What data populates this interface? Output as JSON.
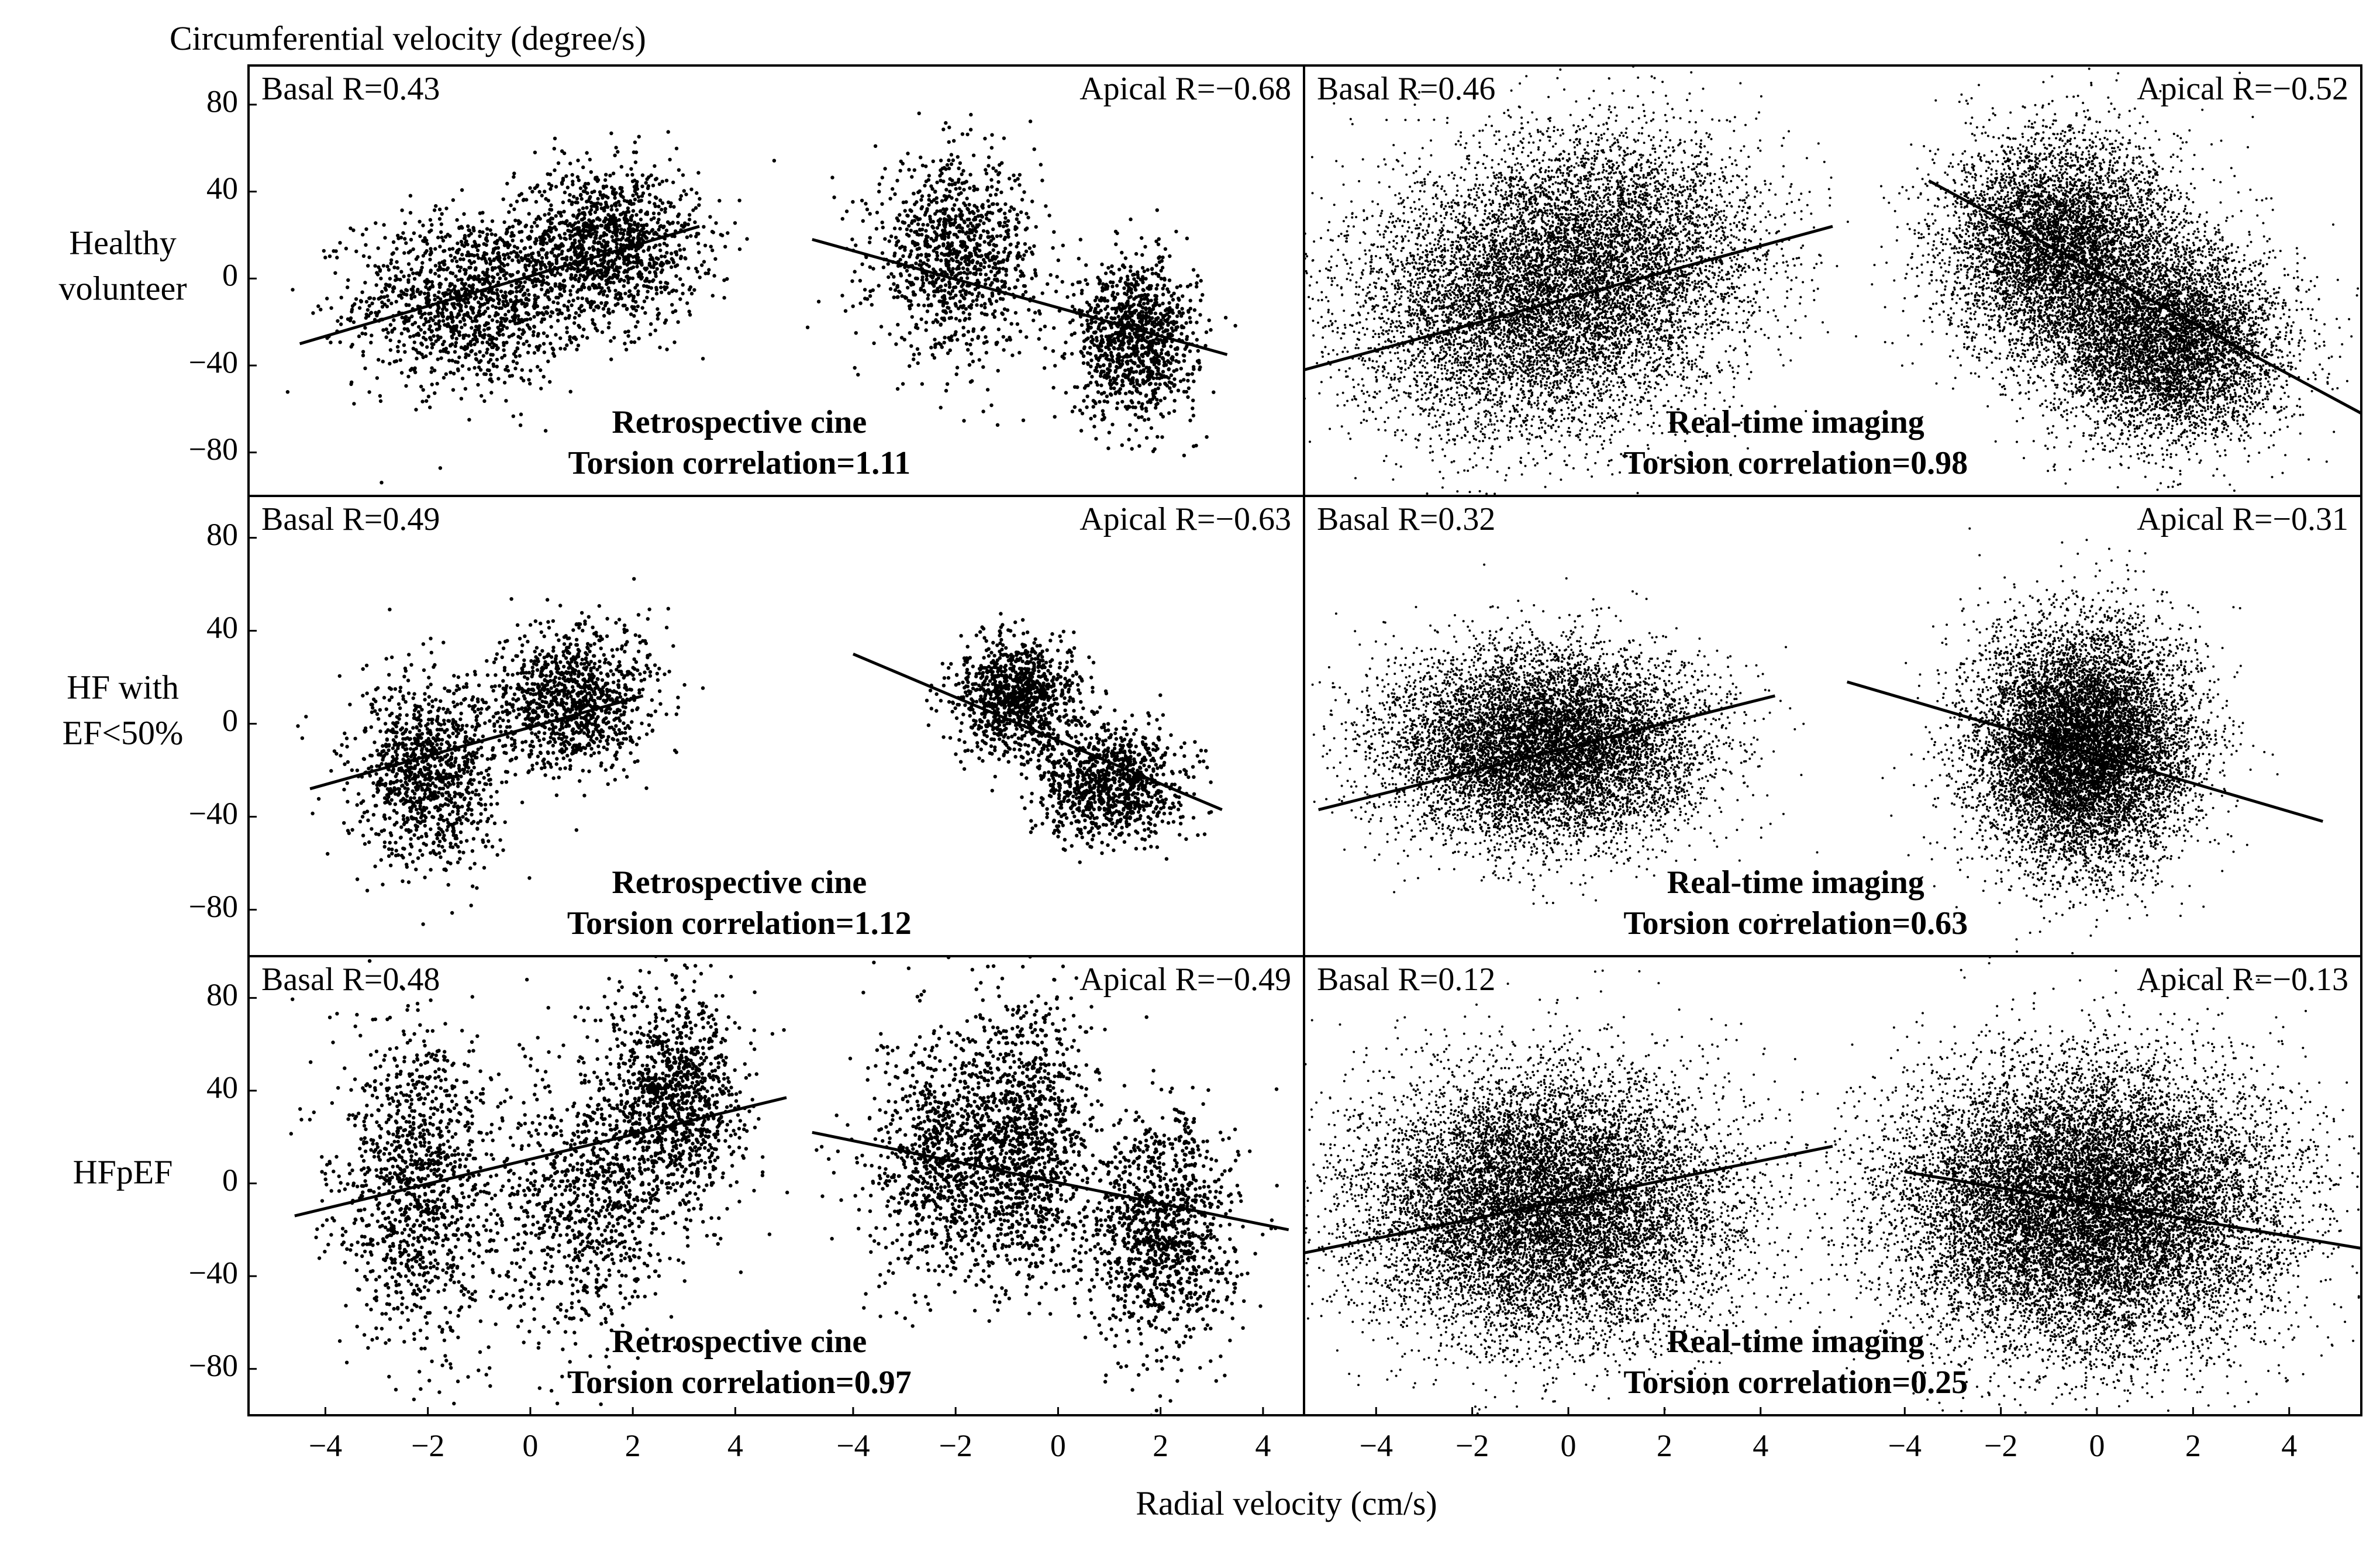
{
  "figure": {
    "y_axis_title": "Circumferential velocity (degree/s)",
    "x_axis_title": "Radial velocity (cm/s)",
    "row_labels": [
      [
        "Healthy",
        "volunteer"
      ],
      [
        "HF with",
        "EF<50%"
      ],
      [
        "HFpEF"
      ]
    ],
    "y_ticks": [
      "80",
      "40",
      "0",
      "−40",
      "−80"
    ],
    "x_ticks": [
      "−4",
      "−2",
      "0",
      "2",
      "4"
    ]
  },
  "chart_data": [
    {
      "type": "scatter",
      "row": "Healthy volunteer",
      "method": "Retrospective cine",
      "annotation": [
        "Retrospective cine",
        "Torsion correlation=1.11"
      ],
      "basal": {
        "label": "Basal R=0.43",
        "r": 0.43,
        "fit": [
          [
            -4.5,
            -30
          ],
          [
            3.3,
            24
          ]
        ],
        "clusters": [
          {
            "cx": -1.2,
            "cy": -10,
            "sx": 1.1,
            "sy": 20,
            "n": 1300
          },
          {
            "cx": 1.5,
            "cy": 15,
            "sx": 0.9,
            "sy": 18,
            "n": 1300
          }
        ]
      },
      "apical": {
        "label": "Apical R=−0.68",
        "r": -0.68,
        "fit": [
          [
            -4.8,
            18
          ],
          [
            3.3,
            -35
          ]
        ],
        "clusters": [
          {
            "cx": -2.0,
            "cy": 10,
            "sx": 0.8,
            "sy": 22,
            "n": 1100
          },
          {
            "cx": 1.5,
            "cy": -28,
            "sx": 0.6,
            "sy": 18,
            "n": 1100
          }
        ]
      },
      "xlim": [
        -5.5,
        4.8
      ],
      "ylim": [
        -100,
        98
      ]
    },
    {
      "type": "scatter",
      "row": "Healthy volunteer",
      "method": "Real-time imaging",
      "annotation": [
        "Real-time imaging",
        "Torsion correlation=0.98"
      ],
      "basal": {
        "label": "Basal R=0.46",
        "r": 0.46,
        "fit": [
          [
            -5.5,
            -42
          ],
          [
            5.5,
            24
          ]
        ],
        "clusters": [
          {
            "cx": -1.0,
            "cy": -15,
            "sx": 1.8,
            "sy": 30,
            "n": 6000
          },
          {
            "cx": 1.0,
            "cy": 15,
            "sx": 1.6,
            "sy": 28,
            "n": 4000
          }
        ]
      },
      "apical": {
        "label": "Apical R=−0.52",
        "r": -0.52,
        "fit": [
          [
            -3.5,
            45
          ],
          [
            5.5,
            -62
          ]
        ],
        "clusters": [
          {
            "cx": -0.8,
            "cy": 15,
            "sx": 1.2,
            "sy": 25,
            "n": 6000
          },
          {
            "cx": 1.5,
            "cy": -30,
            "sx": 1.2,
            "sy": 22,
            "n": 6000
          }
        ]
      },
      "xlim": [
        -5.5,
        5.5
      ],
      "ylim": [
        -100,
        98
      ]
    },
    {
      "type": "scatter",
      "row": "HF with EF<50%",
      "method": "Retrospective cine",
      "annotation": [
        "Retrospective cine",
        "Torsion correlation=1.12"
      ],
      "basal": {
        "label": "Basal R=0.49",
        "r": 0.49,
        "fit": [
          [
            -4.3,
            -28
          ],
          [
            2.2,
            12
          ]
        ],
        "clusters": [
          {
            "cx": -2.0,
            "cy": -20,
            "sx": 0.7,
            "sy": 20,
            "n": 1100
          },
          {
            "cx": 0.8,
            "cy": 10,
            "sx": 0.8,
            "sy": 15,
            "n": 1100
          }
        ]
      },
      "apical": {
        "label": "Apical R=−0.63",
        "r": -0.63,
        "fit": [
          [
            -4.0,
            30
          ],
          [
            3.2,
            -37
          ]
        ],
        "clusters": [
          {
            "cx": -0.8,
            "cy": 12,
            "sx": 0.6,
            "sy": 12,
            "n": 1000
          },
          {
            "cx": 1.0,
            "cy": -25,
            "sx": 0.7,
            "sy": 12,
            "n": 1000
          }
        ]
      },
      "xlim": [
        -5.5,
        4.8
      ],
      "ylim": [
        -100,
        98
      ]
    },
    {
      "type": "scatter",
      "row": "HF with EF<50%",
      "method": "Real-time imaging",
      "annotation": [
        "Real-time imaging",
        "Torsion correlation=0.63"
      ],
      "basal": {
        "label": "Basal R=0.32",
        "r": 0.32,
        "fit": [
          [
            -5.2,
            -37
          ],
          [
            4.3,
            12
          ]
        ],
        "clusters": [
          {
            "cx": -0.5,
            "cy": -10,
            "sx": 1.6,
            "sy": 20,
            "n": 9000
          }
        ]
      },
      "apical": {
        "label": "Apical R=−0.31",
        "r": -0.31,
        "fit": [
          [
            -5.2,
            18
          ],
          [
            4.7,
            -42
          ]
        ],
        "clusters": [
          {
            "cx": -0.3,
            "cy": -10,
            "sx": 1.1,
            "sy": 25,
            "n": 10000
          }
        ]
      },
      "xlim": [
        -5.5,
        5.5
      ],
      "ylim": [
        -100,
        98
      ]
    },
    {
      "type": "scatter",
      "row": "HFpEF",
      "method": "Retrospective cine",
      "annotation": [
        "Retrospective cine",
        "Torsion correlation=0.97"
      ],
      "basal": {
        "label": "Basal R=0.48",
        "r": 0.48,
        "fit": [
          [
            -4.6,
            -14
          ],
          [
            5.0,
            37
          ]
        ],
        "clusters": [
          {
            "cx": -2.2,
            "cy": 0,
            "sx": 0.8,
            "sy": 35,
            "n": 1200
          },
          {
            "cx": 1.0,
            "cy": -10,
            "sx": 0.8,
            "sy": 30,
            "n": 800
          },
          {
            "cx": 2.8,
            "cy": 35,
            "sx": 0.7,
            "sy": 25,
            "n": 1200
          }
        ]
      },
      "apical": {
        "label": "Apical R=−0.49",
        "r": -0.49,
        "fit": [
          [
            -4.8,
            22
          ],
          [
            4.5,
            -20
          ]
        ],
        "clusters": [
          {
            "cx": -2.2,
            "cy": 10,
            "sx": 0.8,
            "sy": 28,
            "n": 1000
          },
          {
            "cx": -0.6,
            "cy": 20,
            "sx": 0.6,
            "sy": 30,
            "n": 1000
          },
          {
            "cx": 2.0,
            "cy": -20,
            "sx": 0.7,
            "sy": 25,
            "n": 1200
          }
        ]
      },
      "xlim": [
        -5.5,
        4.8
      ],
      "ylim": [
        -100,
        98
      ]
    },
    {
      "type": "scatter",
      "row": "HFpEF",
      "method": "Real-time imaging",
      "annotation": [
        "Real-time imaging",
        "Torsion correlation=0.25"
      ],
      "basal": {
        "label": "Basal R=0.12",
        "r": 0.12,
        "fit": [
          [
            -5.5,
            -30
          ],
          [
            5.5,
            16
          ]
        ],
        "clusters": [
          {
            "cx": -0.5,
            "cy": -10,
            "sx": 1.9,
            "sy": 28,
            "n": 11000
          }
        ]
      },
      "apical": {
        "label": "Apical R=−0.13",
        "r": -0.13,
        "fit": [
          [
            -4.0,
            5
          ],
          [
            5.5,
            -28
          ]
        ],
        "clusters": [
          {
            "cx": -0.2,
            "cy": -10,
            "sx": 2.0,
            "sy": 30,
            "n": 14000
          }
        ]
      },
      "xlim": [
        -5.5,
        5.5
      ],
      "ylim": [
        -100,
        98
      ]
    }
  ]
}
